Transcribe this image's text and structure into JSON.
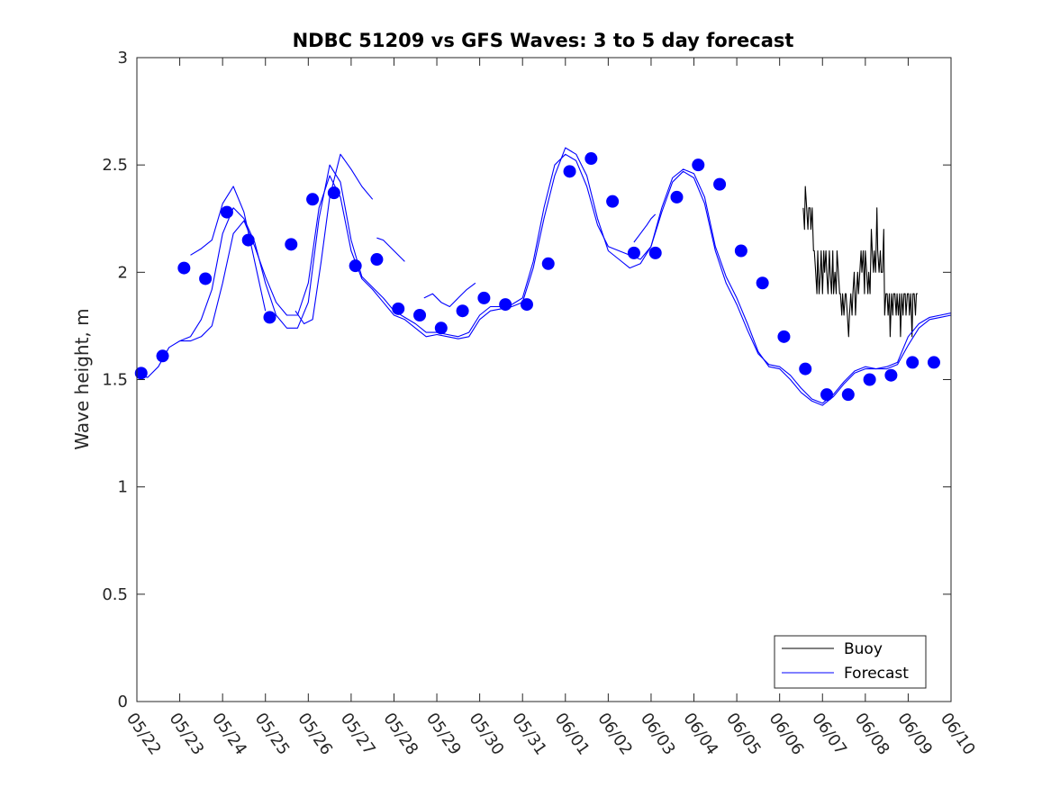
{
  "chart_data": {
    "type": "line",
    "title": "NDBC 51209 vs GFS Waves: 3 to 5 day forecast",
    "xlabel": "",
    "ylabel": "Wave height, m",
    "xlim": [
      0,
      19
    ],
    "ylim": [
      0,
      3
    ],
    "x_ticks": [
      "05/22",
      "05/23",
      "05/24",
      "05/25",
      "05/26",
      "05/27",
      "05/28",
      "05/29",
      "05/30",
      "05/31",
      "06/01",
      "06/02",
      "06/03",
      "06/04",
      "06/05",
      "06/06",
      "06/07",
      "06/08",
      "06/09",
      "06/10"
    ],
    "y_ticks": [
      "0",
      "0.5",
      "1",
      "1.5",
      "2",
      "2.5",
      "3"
    ],
    "legend": {
      "position": "bottom-right",
      "entries": [
        {
          "label": "Buoy",
          "color": "#000000"
        },
        {
          "label": "Forecast",
          "color": "#0000ff"
        }
      ]
    },
    "series": [
      {
        "name": "Buoy",
        "color": "#000000",
        "x": [
          15.55,
          15.58,
          15.6,
          15.63,
          15.66,
          15.68,
          15.71,
          15.73,
          15.76,
          15.79,
          15.81,
          15.84,
          15.87,
          15.89,
          15.92,
          15.95,
          15.97,
          16.0,
          16.03,
          16.05,
          16.08,
          16.1,
          16.13,
          16.16,
          16.18,
          16.21,
          16.24,
          16.26,
          16.29,
          16.32,
          16.34,
          16.37,
          16.4,
          16.42,
          16.45,
          16.47,
          16.5,
          16.53,
          16.55,
          16.58,
          16.61,
          16.63,
          16.66,
          16.69,
          16.71,
          16.74,
          16.77,
          16.79,
          16.82,
          16.84,
          16.87,
          16.9,
          16.92,
          16.95,
          16.98,
          17.0,
          17.03,
          17.06,
          17.08,
          17.11,
          17.14,
          17.16,
          17.19,
          17.21,
          17.24,
          17.27,
          17.29,
          17.32,
          17.35,
          17.37,
          17.4,
          17.43,
          17.45,
          17.48,
          17.51,
          17.53,
          17.56,
          17.58,
          17.61,
          17.64,
          17.66,
          17.69,
          17.72,
          17.74,
          17.77,
          17.8,
          17.82,
          17.85,
          17.88,
          17.9,
          17.93,
          17.95,
          17.98,
          18.01,
          18.03,
          18.06,
          18.09,
          18.11,
          18.14,
          18.17,
          18.19,
          18.22
        ],
        "y": [
          2.3,
          2.2,
          2.4,
          2.3,
          2.2,
          2.3,
          2.3,
          2.2,
          2.3,
          2.1,
          2.1,
          2.0,
          1.9,
          2.1,
          1.9,
          2.0,
          2.1,
          1.9,
          2.1,
          2.0,
          2.1,
          2.0,
          1.9,
          2.1,
          2.0,
          1.9,
          2.1,
          1.9,
          2.0,
          1.9,
          2.1,
          2.0,
          1.9,
          1.9,
          1.8,
          1.9,
          1.8,
          1.9,
          1.9,
          1.8,
          1.7,
          1.8,
          1.9,
          1.8,
          1.9,
          2.0,
          1.8,
          1.9,
          2.0,
          1.9,
          2.0,
          2.1,
          2.0,
          2.1,
          1.9,
          2.1,
          2.0,
          1.9,
          2.0,
          1.9,
          2.2,
          2.1,
          2.0,
          2.1,
          2.0,
          2.3,
          2.1,
          2.0,
          2.1,
          2.0,
          2.0,
          2.2,
          1.8,
          1.9,
          1.9,
          1.8,
          1.9,
          1.7,
          1.9,
          1.8,
          1.9,
          1.9,
          1.8,
          1.9,
          1.8,
          1.9,
          1.7,
          1.9,
          1.8,
          1.9,
          1.9,
          1.8,
          1.9,
          1.9,
          1.8,
          1.9,
          1.7,
          1.9,
          1.9,
          1.8,
          1.9,
          1.9
        ]
      },
      {
        "name": "Forecast",
        "color": "#0000ff",
        "x": [
          0.0,
          0.25,
          0.5,
          0.75,
          1.0,
          1.25,
          1.5,
          1.75,
          2.0,
          2.25,
          2.5,
          2.75,
          3.0,
          3.25,
          3.5,
          3.75,
          4.0,
          4.25,
          4.5,
          4.75,
          5.0,
          5.25,
          5.5,
          5.75,
          6.0,
          6.25,
          6.5,
          6.75,
          7.0,
          7.25,
          7.5,
          7.75,
          8.0,
          8.25,
          8.5,
          8.75,
          9.0,
          9.25,
          9.5,
          9.75,
          10.0,
          10.25,
          10.5,
          10.75,
          11.0,
          11.25,
          11.5,
          11.75,
          12.0,
          12.25,
          12.5,
          12.75,
          13.0,
          13.25,
          13.5,
          13.75,
          14.0,
          14.25,
          14.5,
          14.75,
          15.0,
          15.25,
          15.5,
          15.75,
          16.0,
          16.25,
          16.5,
          16.75,
          17.0,
          17.25,
          17.5,
          17.75,
          18.0,
          18.25,
          18.5,
          18.75,
          19.0
        ],
        "y": [
          1.52,
          1.51,
          1.56,
          1.65,
          1.68,
          1.7,
          1.78,
          1.92,
          2.18,
          2.3,
          2.25,
          2.14,
          1.95,
          1.8,
          1.74,
          1.74,
          1.86,
          2.25,
          2.5,
          2.42,
          2.15,
          1.98,
          1.93,
          1.88,
          1.82,
          1.79,
          1.76,
          1.72,
          1.72,
          1.71,
          1.7,
          1.72,
          1.8,
          1.84,
          1.84,
          1.85,
          1.88,
          2.05,
          2.3,
          2.5,
          2.55,
          2.52,
          2.4,
          2.22,
          2.12,
          2.1,
          2.08,
          2.06,
          2.12,
          2.3,
          2.44,
          2.48,
          2.46,
          2.35,
          2.12,
          1.98,
          1.88,
          1.76,
          1.63,
          1.56,
          1.55,
          1.5,
          1.44,
          1.4,
          1.38,
          1.42,
          1.48,
          1.53,
          1.55,
          1.55,
          1.56,
          1.58,
          1.7,
          1.76,
          1.79,
          1.8,
          1.81
        ]
      },
      {
        "name": "",
        "color": "#0000ff",
        "x": [
          1.0,
          1.25,
          1.5,
          1.75,
          2.0,
          2.25,
          2.5,
          2.75,
          3.0,
          3.25,
          3.5,
          3.75,
          4.0,
          4.25,
          4.5,
          4.75,
          5.0,
          5.25,
          5.5,
          5.75,
          6.0,
          6.25,
          6.5,
          6.75,
          7.0,
          7.25,
          7.5,
          7.75,
          8.0,
          8.25,
          8.5,
          8.75,
          9.0,
          9.25,
          9.5,
          9.75,
          10.0,
          10.25,
          10.5,
          10.75,
          11.0,
          11.25,
          11.5,
          11.75,
          12.0,
          12.25,
          12.5,
          12.75,
          13.0,
          13.25,
          13.5,
          13.75,
          14.0,
          14.25,
          14.5,
          14.75,
          15.0,
          15.25,
          15.5,
          15.75,
          16.0,
          16.25,
          16.5,
          16.75,
          17.0,
          17.25,
          17.5,
          17.75,
          18.0,
          18.25,
          18.5,
          18.75,
          19.0
        ],
        "y": [
          1.68,
          1.68,
          1.7,
          1.75,
          1.95,
          2.18,
          2.24,
          2.12,
          1.98,
          1.86,
          1.8,
          1.8,
          1.95,
          2.3,
          2.45,
          2.35,
          2.1,
          1.97,
          1.92,
          1.86,
          1.8,
          1.78,
          1.74,
          1.7,
          1.71,
          1.7,
          1.69,
          1.7,
          1.78,
          1.82,
          1.83,
          1.84,
          1.86,
          2.02,
          2.25,
          2.45,
          2.58,
          2.55,
          2.45,
          2.25,
          2.1,
          2.06,
          2.02,
          2.04,
          2.12,
          2.28,
          2.42,
          2.47,
          2.44,
          2.32,
          2.1,
          1.95,
          1.85,
          1.73,
          1.62,
          1.57,
          1.56,
          1.52,
          1.46,
          1.41,
          1.39,
          1.43,
          1.49,
          1.54,
          1.56,
          1.55,
          1.55,
          1.57,
          1.66,
          1.74,
          1.78,
          1.79,
          1.8
        ]
      },
      {
        "name": "",
        "color": "#0000ff",
        "x": [
          1.25,
          1.5,
          1.75,
          2.0,
          2.25,
          2.5,
          2.75,
          3.0
        ],
        "y": [
          2.08,
          2.11,
          2.15,
          2.32,
          2.4,
          2.28,
          2.05,
          1.82
        ]
      },
      {
        "name": "",
        "color": "#0000ff",
        "x": [
          3.7,
          3.9,
          4.1,
          4.3,
          4.5,
          4.75,
          5.0,
          5.25,
          5.5
        ],
        "y": [
          1.82,
          1.76,
          1.78,
          2.05,
          2.35,
          2.55,
          2.48,
          2.4,
          2.34
        ]
      },
      {
        "name": "",
        "color": "#0000ff",
        "x": [
          5.6,
          5.75,
          6.0,
          6.25
        ],
        "y": [
          2.16,
          2.15,
          2.1,
          2.05
        ]
      },
      {
        "name": "",
        "color": "#0000ff",
        "x": [
          6.7,
          6.9,
          7.1,
          7.3,
          7.5,
          7.7,
          7.9
        ],
        "y": [
          1.88,
          1.9,
          1.86,
          1.84,
          1.88,
          1.92,
          1.95
        ]
      },
      {
        "name": "",
        "color": "#0000ff",
        "x": [
          11.6,
          11.75,
          11.9,
          12.0,
          12.1
        ],
        "y": [
          2.14,
          2.18,
          2.22,
          2.25,
          2.27
        ]
      }
    ],
    "markers": {
      "series": "Forecast",
      "color": "#0000ff",
      "x": [
        0.1,
        0.6,
        1.1,
        1.6,
        2.1,
        2.6,
        3.1,
        3.6,
        4.1,
        4.6,
        5.1,
        5.6,
        6.1,
        6.6,
        7.1,
        7.6,
        8.1,
        8.6,
        9.1,
        9.6,
        10.1,
        10.6,
        11.1,
        11.6,
        12.1,
        12.6,
        13.1,
        13.6,
        14.1,
        14.6,
        15.1,
        15.6,
        16.1,
        16.6,
        17.1,
        17.6,
        18.1,
        18.6
      ],
      "y": [
        1.53,
        1.61,
        2.02,
        1.97,
        2.28,
        2.15,
        1.79,
        2.13,
        2.34,
        2.37,
        2.03,
        2.06,
        1.83,
        1.8,
        1.74,
        1.82,
        1.88,
        1.85,
        1.85,
        2.04,
        2.47,
        2.53,
        2.33,
        2.09,
        2.09,
        2.35,
        2.5,
        2.41,
        2.1,
        1.95,
        1.7,
        1.55,
        1.43,
        1.43,
        1.5,
        1.52,
        1.58,
        1.58
      ]
    }
  }
}
